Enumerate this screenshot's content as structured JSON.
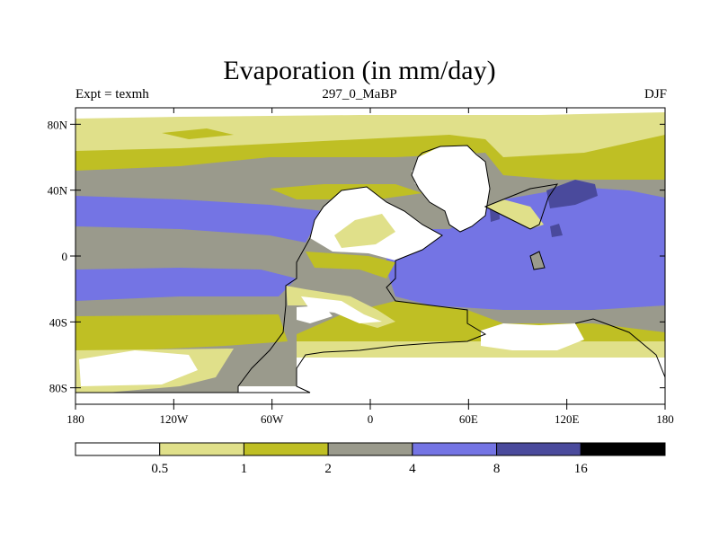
{
  "title": "Evaporation (in mm/day)",
  "subtitle_left": "Expt = texmh",
  "subtitle_center": "297_0_MaBP",
  "subtitle_right": "DJF",
  "map": {
    "lon_range": [
      -180,
      180
    ],
    "lat_range": [
      -90,
      90
    ],
    "lat_ticks": [
      {
        "value": 80,
        "label": "80N"
      },
      {
        "value": 40,
        "label": "40N"
      },
      {
        "value": 0,
        "label": "0"
      },
      {
        "value": -40,
        "label": "40S"
      },
      {
        "value": -80,
        "label": "80S"
      }
    ],
    "lon_ticks": [
      {
        "value": -180,
        "label": "180"
      },
      {
        "value": -120,
        "label": "120W"
      },
      {
        "value": -60,
        "label": "60W"
      },
      {
        "value": 0,
        "label": "0"
      },
      {
        "value": 60,
        "label": "60E"
      },
      {
        "value": 120,
        "label": "120E"
      },
      {
        "value": 180,
        "label": "180"
      }
    ]
  },
  "colorbar": {
    "colors": [
      "#ffffff",
      "#e0e08a",
      "#bfbf24",
      "#9a9a8c",
      "#7474e4",
      "#4a4a9c",
      "#000000"
    ],
    "labels": [
      "0.5",
      "1",
      "2",
      "4",
      "8",
      "16"
    ]
  }
}
